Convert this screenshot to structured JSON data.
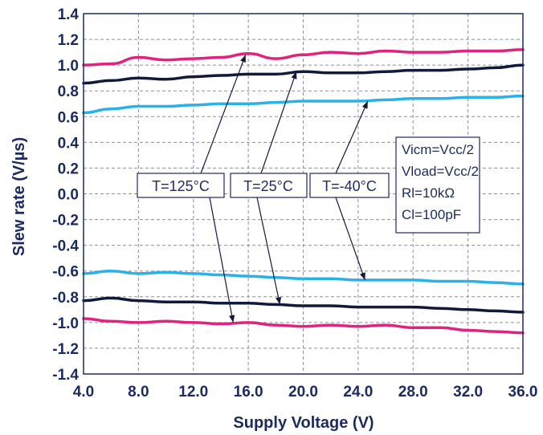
{
  "chart_data": {
    "type": "line",
    "xlabel": "Supply Voltage (V)",
    "ylabel": "Slew rate (V/µs)",
    "xlim": [
      4,
      36
    ],
    "ylim": [
      -1.4,
      1.4
    ],
    "x_ticks": [
      "4.0",
      "8.0",
      "12.0",
      "16.0",
      "20.0",
      "24.0",
      "28.0",
      "32.0",
      "36.0"
    ],
    "y_ticks": [
      "1.4",
      "1.2",
      "1.0",
      "0.8",
      "0.6",
      "0.4",
      "0.2",
      "0.0",
      "-0.2",
      "-0.4",
      "-0.6",
      "-0.8",
      "-1.0",
      "-1.2",
      "-1.4"
    ],
    "grid": true,
    "series": [
      {
        "color": "#e0247d",
        "x": [
          4,
          6,
          8,
          10,
          12,
          14,
          16,
          18,
          20,
          22,
          24,
          26,
          28,
          30,
          32,
          34,
          36
        ],
        "values": [
          1.0,
          1.01,
          1.06,
          1.04,
          1.05,
          1.06,
          1.09,
          1.05,
          1.08,
          1.1,
          1.09,
          1.11,
          1.1,
          1.1,
          1.11,
          1.11,
          1.12
        ]
      },
      {
        "color": "#121a3b",
        "x": [
          4,
          6,
          8,
          10,
          12,
          14,
          16,
          18,
          20,
          22,
          24,
          26,
          28,
          30,
          32,
          34,
          36
        ],
        "values": [
          0.86,
          0.88,
          0.9,
          0.89,
          0.91,
          0.92,
          0.93,
          0.93,
          0.95,
          0.94,
          0.94,
          0.95,
          0.96,
          0.96,
          0.97,
          0.98,
          1.0
        ]
      },
      {
        "color": "#2ab2e6",
        "x": [
          4,
          6,
          8,
          10,
          12,
          14,
          16,
          18,
          20,
          22,
          24,
          26,
          28,
          30,
          32,
          34,
          36
        ],
        "values": [
          0.63,
          0.66,
          0.68,
          0.68,
          0.69,
          0.7,
          0.7,
          0.71,
          0.72,
          0.72,
          0.72,
          0.73,
          0.74,
          0.74,
          0.75,
          0.75,
          0.76
        ]
      },
      {
        "color": "#2ab2e6",
        "x": [
          4,
          6,
          8,
          10,
          12,
          14,
          16,
          18,
          20,
          22,
          24,
          26,
          28,
          30,
          32,
          34,
          36
        ],
        "values": [
          -0.62,
          -0.6,
          -0.62,
          -0.61,
          -0.62,
          -0.63,
          -0.64,
          -0.65,
          -0.66,
          -0.66,
          -0.67,
          -0.67,
          -0.67,
          -0.68,
          -0.68,
          -0.69,
          -0.7
        ]
      },
      {
        "color": "#121a3b",
        "x": [
          4,
          6,
          8,
          10,
          12,
          14,
          16,
          18,
          20,
          22,
          24,
          26,
          28,
          30,
          32,
          34,
          36
        ],
        "values": [
          -0.83,
          -0.81,
          -0.83,
          -0.84,
          -0.84,
          -0.85,
          -0.85,
          -0.86,
          -0.87,
          -0.87,
          -0.88,
          -0.88,
          -0.88,
          -0.89,
          -0.9,
          -0.91,
          -0.92
        ]
      },
      {
        "color": "#e0247d",
        "x": [
          4,
          6,
          8,
          10,
          12,
          14,
          16,
          18,
          20,
          22,
          24,
          26,
          28,
          30,
          32,
          34,
          36
        ],
        "values": [
          -0.97,
          -0.99,
          -1.0,
          -0.99,
          -1.0,
          -1.01,
          -1.0,
          -1.02,
          -1.03,
          -1.02,
          -1.03,
          -1.02,
          -1.04,
          -1.04,
          -1.06,
          -1.07,
          -1.08
        ]
      }
    ],
    "annotations": {
      "temperature_labels": [
        {
          "text": "T=125°C",
          "targets": [
            [
              15.8,
              1.08
            ],
            [
              14.9,
              -1.0
            ]
          ]
        },
        {
          "text": "T=25°C",
          "targets": [
            [
              19.5,
              0.95
            ],
            [
              18.3,
              -0.86
            ]
          ]
        },
        {
          "text": "T=-40°C",
          "targets": [
            [
              24.7,
              0.72
            ],
            [
              24.5,
              -0.67
            ]
          ]
        }
      ],
      "conditions": [
        "Vicm=Vcc/2",
        "Vload=Vcc/2",
        "Rl=10kΩ",
        "Cl=100pF"
      ]
    }
  }
}
